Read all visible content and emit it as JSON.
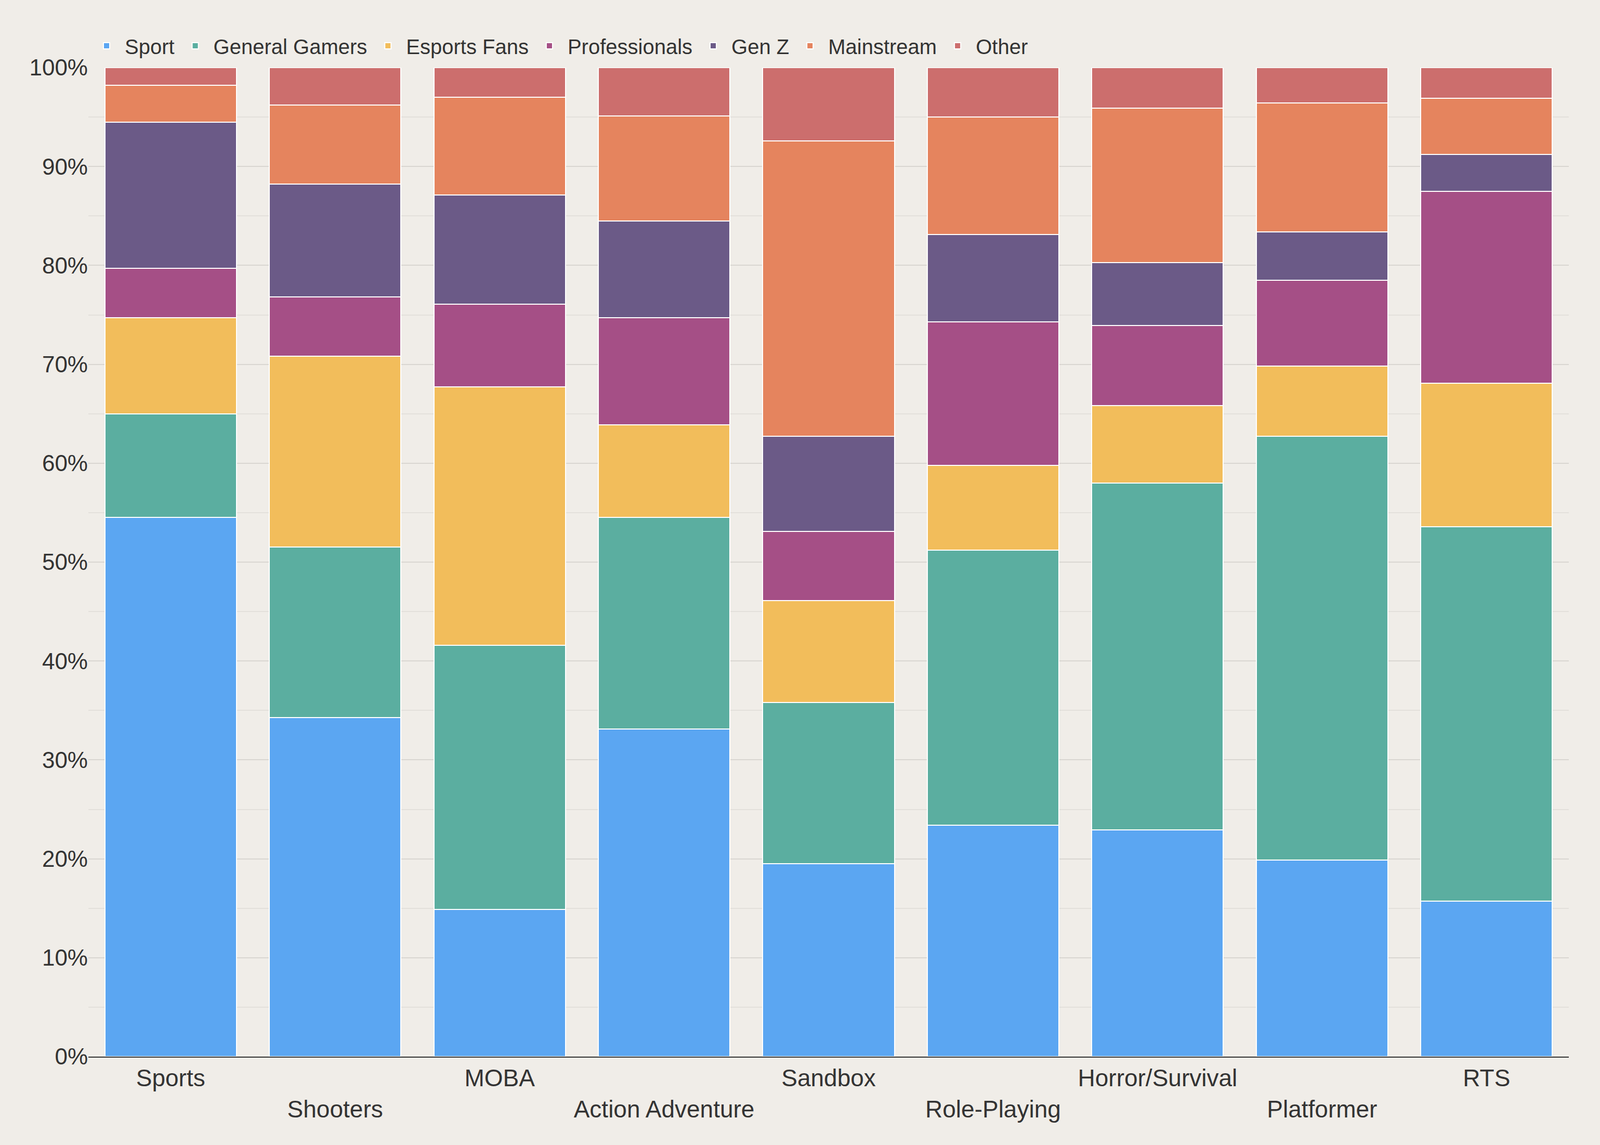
{
  "chart_data": {
    "type": "bar",
    "stacked": true,
    "grid": true,
    "legend": "top",
    "categories": [
      "Sports",
      "Shooters",
      "MOBA",
      "Action Adventure",
      "Sandbox",
      "Role-Playing",
      "Horror/Survival",
      "Platformer",
      "RTS"
    ],
    "series": [
      {
        "name": "Sport",
        "color": "#5ba6f2",
        "values": [
          54.5,
          34.3,
          14.9,
          33.1,
          19.5,
          23.4,
          22.9,
          19.9,
          15.7
        ]
      },
      {
        "name": "General Gamers",
        "color": "#5baea0",
        "values": [
          10.5,
          17.2,
          26.7,
          21.4,
          16.3,
          27.8,
          35.1,
          42.8,
          37.9
        ]
      },
      {
        "name": "Esports Fans",
        "color": "#f2bd5b",
        "values": [
          9.7,
          19.3,
          26.1,
          9.4,
          10.3,
          8.6,
          7.8,
          7.1,
          14.5
        ]
      },
      {
        "name": "Professionals",
        "color": "#a54f86",
        "values": [
          5.0,
          6.0,
          8.4,
          10.8,
          7.0,
          14.5,
          8.1,
          8.7,
          19.4
        ]
      },
      {
        "name": "Gen Z",
        "color": "#6b5a87",
        "values": [
          14.8,
          11.4,
          11.0,
          9.8,
          9.6,
          8.8,
          6.4,
          4.9,
          3.7
        ]
      },
      {
        "name": "Mainstream",
        "color": "#e5845e",
        "values": [
          3.7,
          8.0,
          9.9,
          10.6,
          29.9,
          11.9,
          15.6,
          13.0,
          5.7
        ]
      },
      {
        "name": "Other",
        "color": "#cc6e6d",
        "values": [
          1.8,
          3.8,
          3.0,
          4.9,
          7.4,
          5.0,
          4.1,
          3.6,
          3.1
        ]
      }
    ],
    "ylim": [
      0,
      100
    ],
    "yticks": [
      {
        "value": 0,
        "label": "0%"
      },
      {
        "value": 10,
        "label": "10%"
      },
      {
        "value": 20,
        "label": "20%"
      },
      {
        "value": 30,
        "label": "30%"
      },
      {
        "value": 40,
        "label": "40%"
      },
      {
        "value": 50,
        "label": "50%"
      },
      {
        "value": 60,
        "label": "60%"
      },
      {
        "value": 70,
        "label": "70%"
      },
      {
        "value": 80,
        "label": "80%"
      },
      {
        "value": 90,
        "label": "90%"
      },
      {
        "value": 100,
        "label": "100%"
      }
    ]
  }
}
